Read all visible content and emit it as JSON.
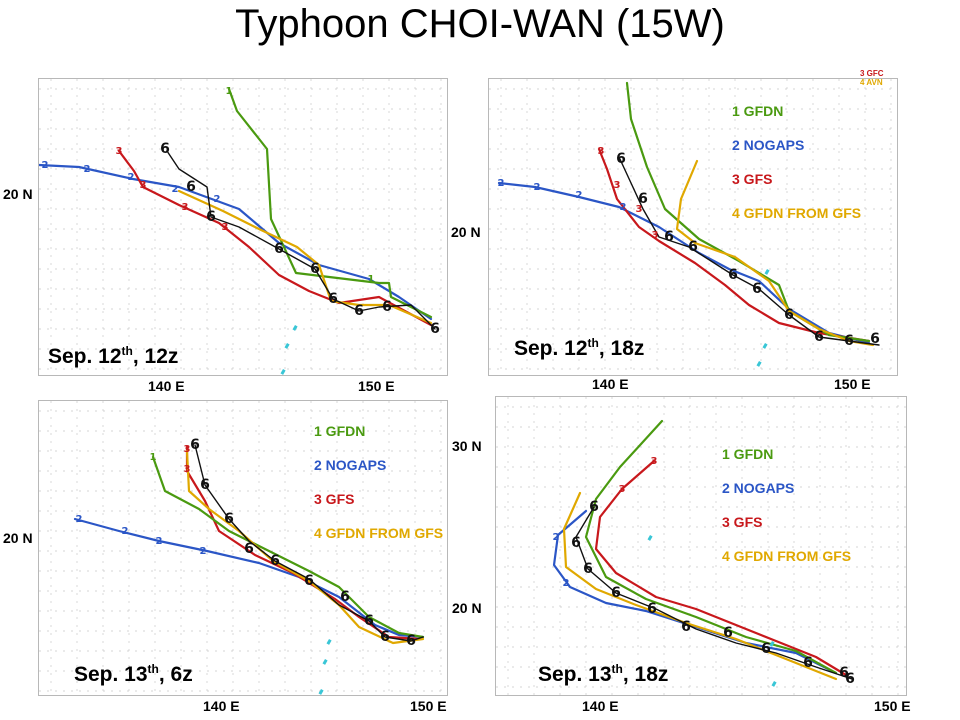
{
  "title": "Typhoon CHOI-WAN  (15W)",
  "colors": {
    "gfdn": "#4a9a10",
    "nogaps": "#2b56c6",
    "gfs": "#c8181c",
    "gfdn_gfs": "#e0a800",
    "best": "#111111",
    "sst": "#39c6d6"
  },
  "legend": [
    {
      "text": "1 GFDN",
      "key": "gfdn"
    },
    {
      "text": "2 NOGAPS",
      "key": "nogaps"
    },
    {
      "text": "3 GFS",
      "key": "gfs"
    },
    {
      "text": "4 GFDN FROM GFS",
      "key": "gfdn_gfs"
    }
  ],
  "corner_legend": {
    "gfc": "3 GFC",
    "avn": "4 AVN"
  },
  "panels": [
    {
      "date": "Sep. 12",
      "sup": "th",
      "time": ", 12z",
      "lat": [
        "20 N"
      ],
      "lon": [
        "140 E",
        "150 E"
      ]
    },
    {
      "date": "Sep. 12",
      "sup": "th",
      "time": ", 18z",
      "lat": [
        "20 N"
      ],
      "lon": [
        "140 E",
        "150 E"
      ]
    },
    {
      "date": "Sep. 13",
      "sup": "th",
      "time": ", 6z",
      "lat": [
        "20 N"
      ],
      "lon": [
        "140 E",
        "150 E"
      ]
    },
    {
      "date": "Sep. 13",
      "sup": "th",
      "time": ", 18z",
      "lat": [
        "30 N",
        "20 N"
      ],
      "lon": [
        "140 E",
        "150 E"
      ]
    }
  ]
}
